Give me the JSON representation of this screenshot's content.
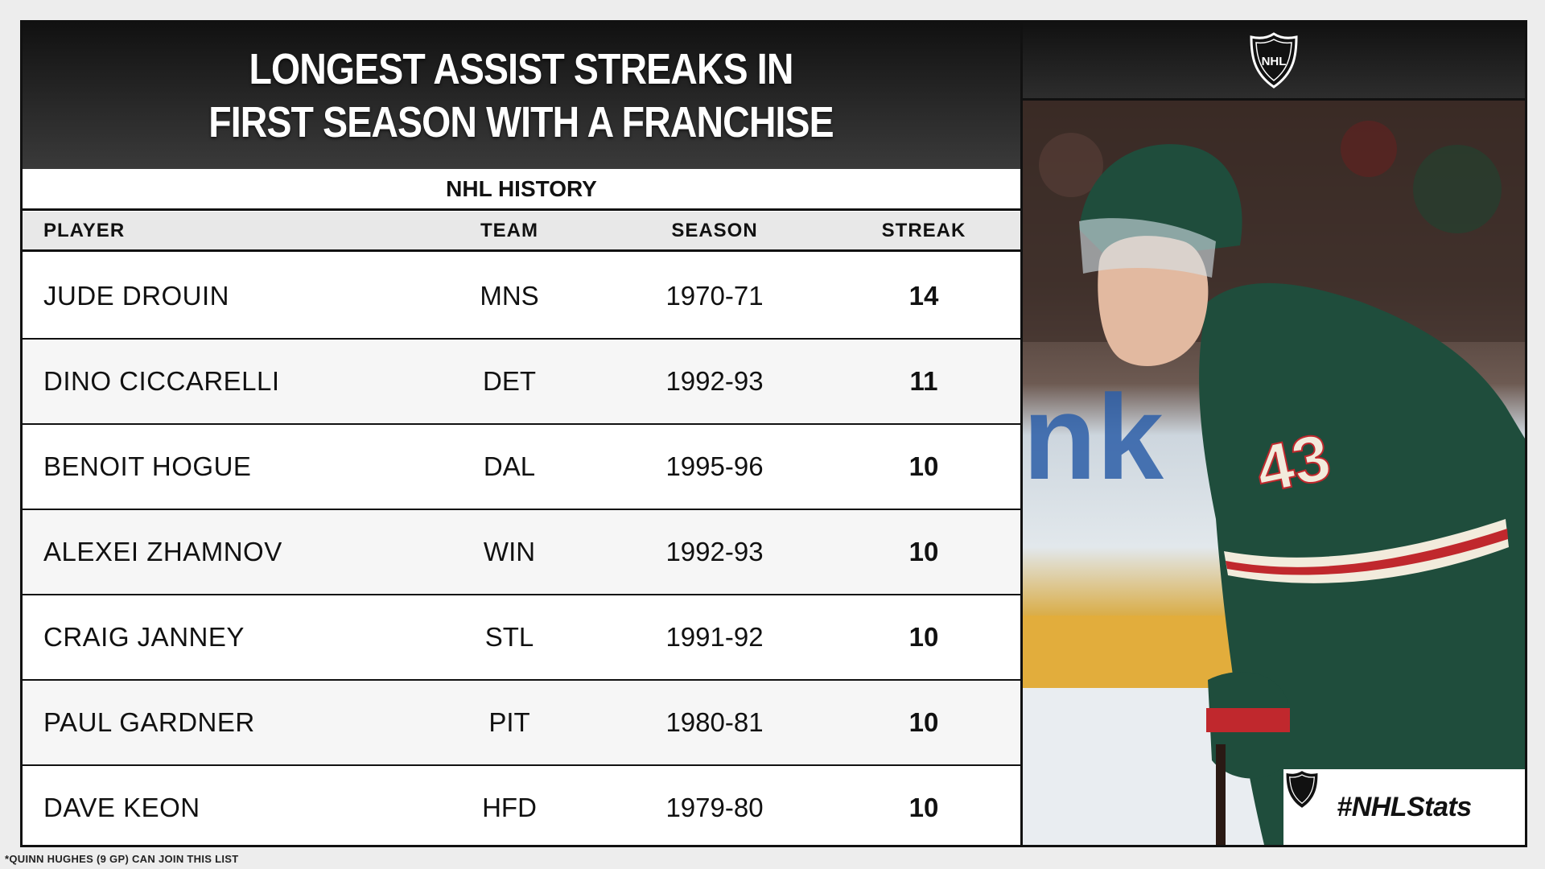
{
  "title_line1": "LONGEST ASSIST STREAKS IN",
  "title_line2": "FIRST SEASON WITH A FRANCHISE",
  "subtitle": "NHL HISTORY",
  "columns": {
    "player": "PLAYER",
    "team": "TEAM",
    "season": "SEASON",
    "streak": "STREAK"
  },
  "rows": [
    {
      "player": "JUDE DROUIN",
      "team": "MNS",
      "season": "1970-71",
      "streak": "14"
    },
    {
      "player": "DINO CICCARELLI",
      "team": "DET",
      "season": "1992-93",
      "streak": "11"
    },
    {
      "player": "BENOIT HOGUE",
      "team": "DAL",
      "season": "1995-96",
      "streak": "10"
    },
    {
      "player": "ALEXEI ZHAMNOV",
      "team": "WIN",
      "season": "1992-93",
      "streak": "10"
    },
    {
      "player": "CRAIG JANNEY",
      "team": "STL",
      "season": "1991-92",
      "streak": "10"
    },
    {
      "player": "PAUL GARDNER",
      "team": "PIT",
      "season": "1980-81",
      "streak": "10"
    },
    {
      "player": "DAVE KEON",
      "team": "HFD",
      "season": "1979-80",
      "streak": "10"
    }
  ],
  "hashtag": "#NHLStats",
  "logo_text": "NHL",
  "jersey_number": "43",
  "footnote": "*QUINN HUGHES (9 GP) CAN JOIN THIS LIST",
  "icons": [
    "nhl-shield-icon"
  ]
}
